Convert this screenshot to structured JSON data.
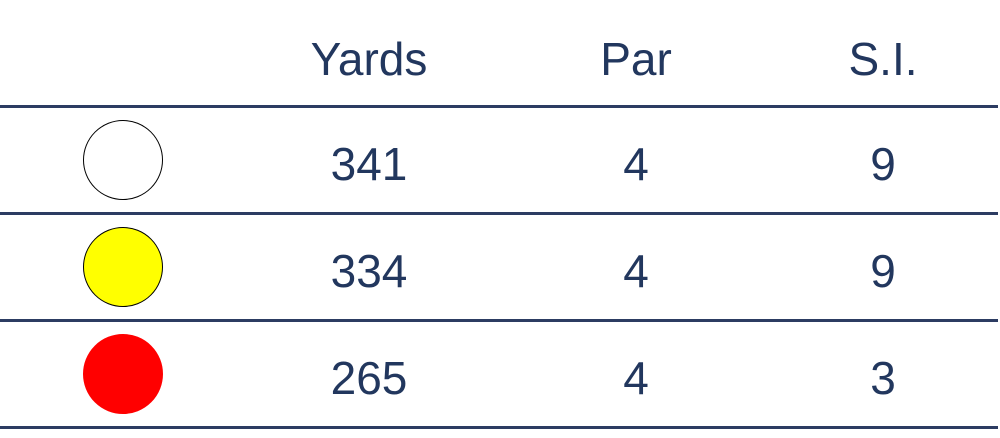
{
  "header": {
    "yards": "Yards",
    "par": "Par",
    "si": "S.I."
  },
  "rows": [
    {
      "tee_color": "#ffffff",
      "tee_border": "#000000",
      "yards": "341",
      "par": "4",
      "si": "9"
    },
    {
      "tee_color": "#ffff00",
      "tee_border": "#000000",
      "yards": "334",
      "par": "4",
      "si": "9"
    },
    {
      "tee_color": "#ff0000",
      "tee_border": "#ff0000",
      "yards": "265",
      "par": "4",
      "si": "3"
    }
  ],
  "colors": {
    "text": "#22375e",
    "rule": "#2c3c62"
  }
}
